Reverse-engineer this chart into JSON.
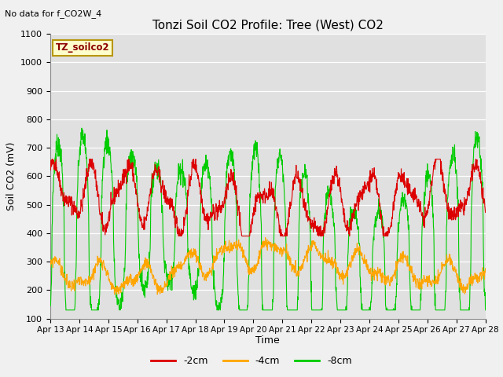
{
  "title": "Tonzi Soil CO2 Profile: Tree (West) CO2",
  "subtitle": "No data for f_CO2W_4",
  "ylabel": "Soil CO2 (mV)",
  "xlabel": "Time",
  "ylim": [
    100,
    1100
  ],
  "yticks": [
    100,
    200,
    300,
    400,
    500,
    600,
    700,
    800,
    900,
    1000,
    1100
  ],
  "x_labels": [
    "Apr 13",
    "Apr 14",
    "Apr 15",
    "Apr 16",
    "Apr 17",
    "Apr 18",
    "Apr 19",
    "Apr 20",
    "Apr 21",
    "Apr 22",
    "Apr 23",
    "Apr 24",
    "Apr 25",
    "Apr 26",
    "Apr 27",
    "Apr 28"
  ],
  "color_2cm": "#dd0000",
  "color_4cm": "#ffa500",
  "color_8cm": "#00cc00",
  "legend_label_2cm": "-2cm",
  "legend_label_4cm": "-4cm",
  "legend_label_8cm": "-8cm",
  "box_label": "TZ_soilco2",
  "fig_facecolor": "#f0f0f0",
  "ax_facecolor": "#e0e0e0"
}
